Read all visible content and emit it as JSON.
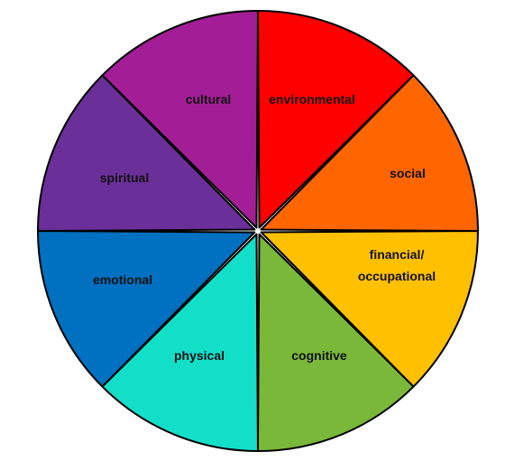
{
  "wheel": {
    "segments": [
      {
        "id": "environmental",
        "lines": [
          "environmental"
        ],
        "color": "#ff0000"
      },
      {
        "id": "social",
        "lines": [
          "social"
        ],
        "color": "#ff6600"
      },
      {
        "id": "financial-occupational",
        "lines": [
          "financial/",
          "occupational"
        ],
        "color": "#ffc000"
      },
      {
        "id": "cognitive",
        "lines": [
          "cognitive"
        ],
        "color": "#7ab83a"
      },
      {
        "id": "physical",
        "lines": [
          "physical"
        ],
        "color": "#13dfc9"
      },
      {
        "id": "emotional",
        "lines": [
          "emotional"
        ],
        "color": "#0070c0"
      },
      {
        "id": "spiritual",
        "lines": [
          "spiritual"
        ],
        "color": "#6a2f98"
      },
      {
        "id": "cultural",
        "lines": [
          "cultural"
        ],
        "color": "#a31e96"
      }
    ],
    "outline_color": "#000000",
    "gap_color": "#ffffff"
  }
}
